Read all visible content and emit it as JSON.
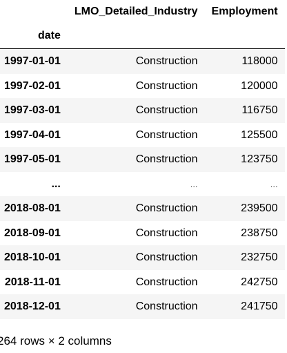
{
  "table": {
    "columns": [
      "LMO_Detailed_Industry",
      "Employment"
    ],
    "index_name": "date",
    "rows": [
      {
        "index": "1997-01-01",
        "industry": "Construction",
        "employment": "118000",
        "ellipsis": false
      },
      {
        "index": "1997-02-01",
        "industry": "Construction",
        "employment": "120000",
        "ellipsis": false
      },
      {
        "index": "1997-03-01",
        "industry": "Construction",
        "employment": "116750",
        "ellipsis": false
      },
      {
        "index": "1997-04-01",
        "industry": "Construction",
        "employment": "125500",
        "ellipsis": false
      },
      {
        "index": "1997-05-01",
        "industry": "Construction",
        "employment": "123750",
        "ellipsis": false
      },
      {
        "index": "...",
        "industry": "...",
        "employment": "...",
        "ellipsis": true
      },
      {
        "index": "2018-08-01",
        "industry": "Construction",
        "employment": "239500",
        "ellipsis": false
      },
      {
        "index": "2018-09-01",
        "industry": "Construction",
        "employment": "238750",
        "ellipsis": false
      },
      {
        "index": "2018-10-01",
        "industry": "Construction",
        "employment": "232750",
        "ellipsis": false
      },
      {
        "index": "2018-11-01",
        "industry": "Construction",
        "employment": "242750",
        "ellipsis": false
      },
      {
        "index": "2018-12-01",
        "industry": "Construction",
        "employment": "241750",
        "ellipsis": false
      }
    ]
  },
  "footer": {
    "shape_text": "264 rows × 2 columns"
  }
}
